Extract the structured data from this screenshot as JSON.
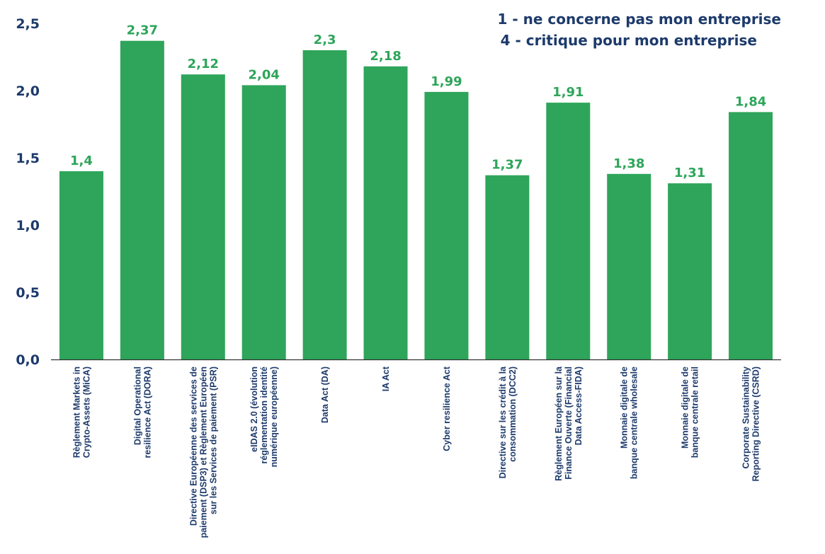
{
  "chart_data": {
    "type": "bar",
    "categories": [
      "Règlement Markets in|Crypto-Assets (MiCA)",
      "Digital Operational|resilience Act (DORA)",
      "Directive Européenne des services de|paiement (DSP3) et Règlement Européen|sur les Services de paiement (PSR)",
      "eIDAS 2.0 (évolution|réglementation identité|numérique européenne)",
      "Data Act (DA)",
      "IA Act",
      "Cyber resilience Act",
      "Directive sur les crédit à la|consommation (DCC2)",
      "Règlement Européen sur la|Finance Ouverte (Financial|Data Access-FIDA)",
      "Monnaie digitale de|banque centrale wholesale",
      "Monnaie digitale de|banque centrale retail",
      "Corporate Sustainability|Reporting Directive (CSRD)"
    ],
    "values": [
      1.4,
      2.37,
      2.12,
      2.04,
      2.3,
      2.18,
      1.99,
      1.37,
      1.91,
      1.38,
      1.31,
      1.84
    ],
    "value_labels": [
      "1,4",
      "2,37",
      "2,12",
      "2,04",
      "2,3",
      "2,18",
      "1,99",
      "1,37",
      "1,91",
      "1,38",
      "1,31",
      "1,84"
    ],
    "y_ticks": [
      0,
      0.5,
      1.0,
      1.5,
      2.0,
      2.5
    ],
    "y_tick_labels": [
      "0,0",
      "0,5",
      "1,0",
      "1,5",
      "2,0",
      "2,5"
    ],
    "ylim": [
      0,
      2.5
    ],
    "title": "",
    "xlabel": "",
    "ylabel": "",
    "grid": false,
    "legend_placement": "top-right",
    "annotations": [
      "1 - ne concerne pas mon entreprise",
      "4 - critique pour mon entreprise"
    ],
    "colors": {
      "bar": "#2ea55a",
      "value_label": "#2ea55a",
      "text": "#1d3a6b",
      "axis": "#333333"
    }
  }
}
